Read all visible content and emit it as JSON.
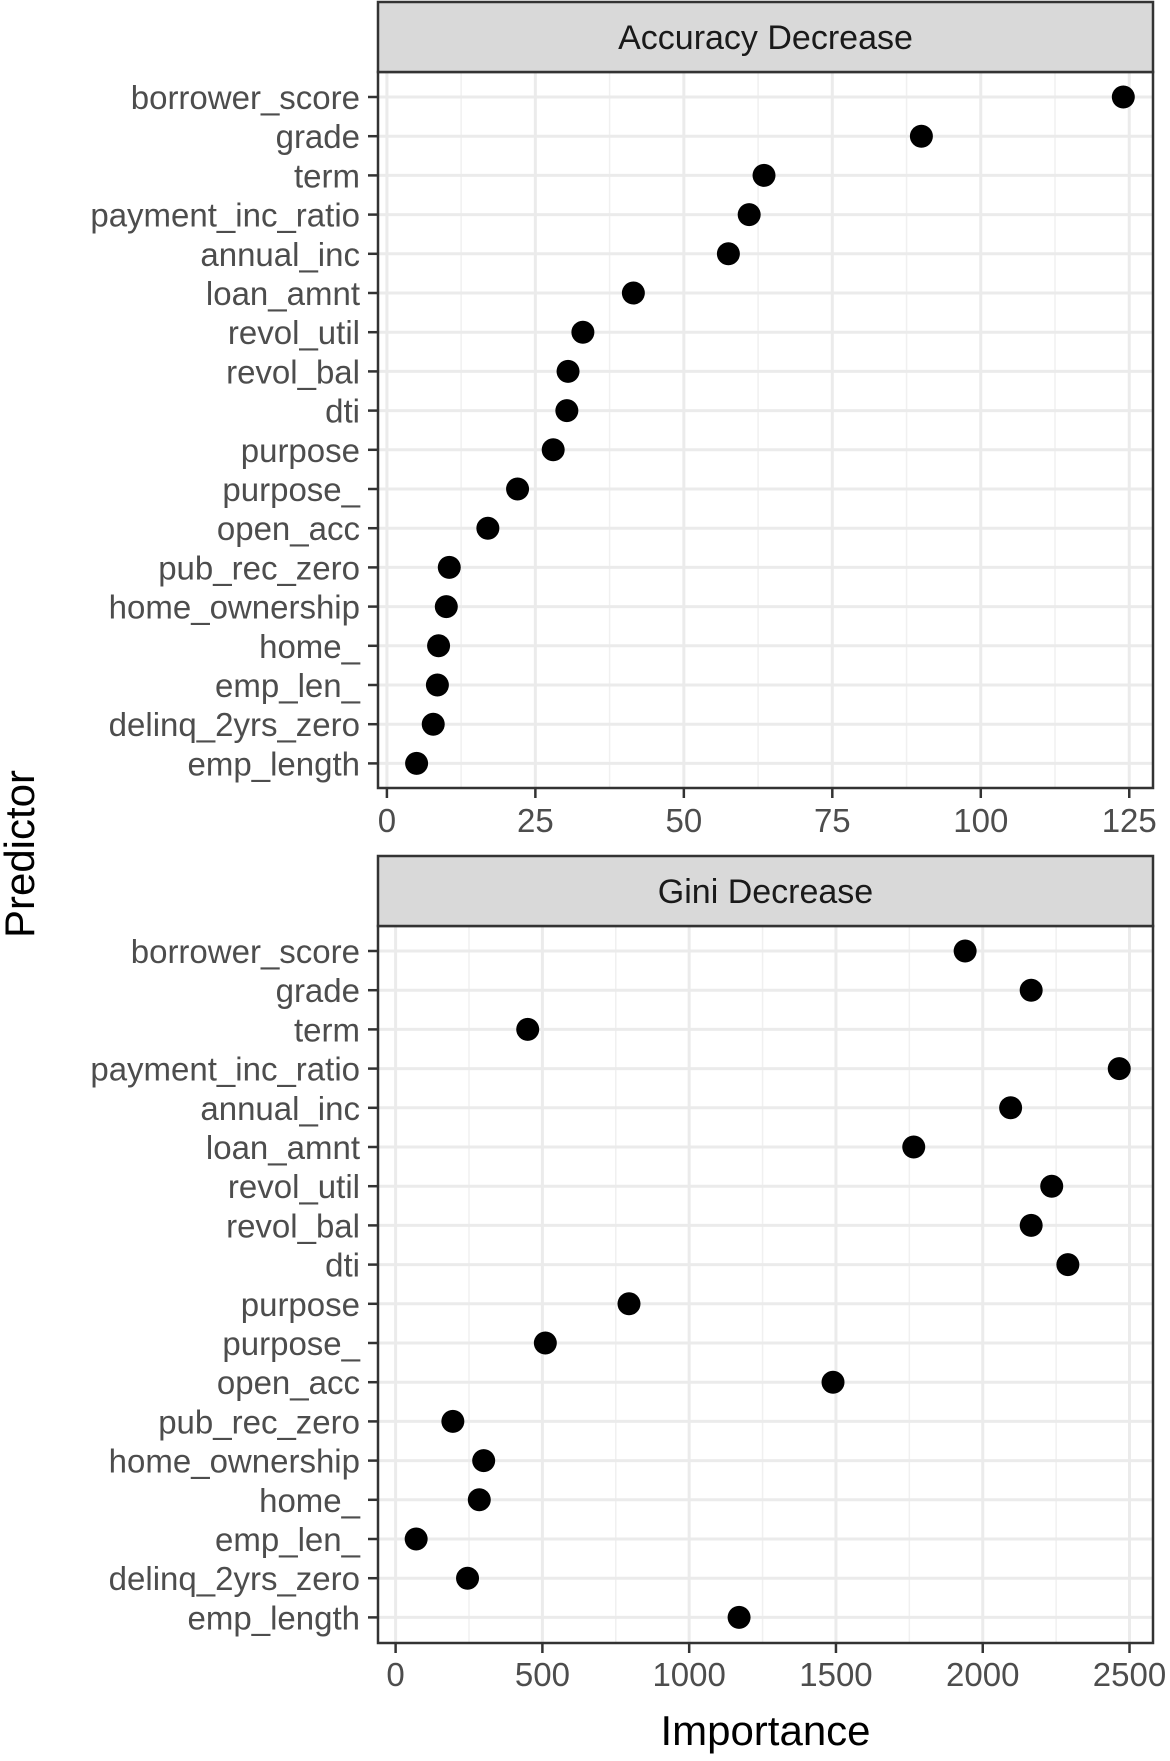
{
  "chart_data": {
    "type": "scatter",
    "xlabel": "Importance",
    "ylabel": "Predictor",
    "categories": [
      "borrower_score",
      "grade",
      "term",
      "payment_inc_ratio",
      "annual_inc",
      "loan_amnt",
      "revol_util",
      "revol_bal",
      "dti",
      "purpose",
      "purpose_",
      "open_acc",
      "pub_rec_zero",
      "home_ownership",
      "home_",
      "emp_len_",
      "delinq_2yrs_zero",
      "emp_length"
    ],
    "grid": true,
    "panels": [
      {
        "title": "Accuracy Decrease",
        "xlim": [
          -1.5,
          129
        ],
        "xticks": [
          0,
          25,
          50,
          75,
          100,
          125
        ],
        "values": [
          124,
          90,
          63.5,
          61,
          57.5,
          41.5,
          33,
          30.5,
          30.3,
          28,
          22,
          17,
          10.5,
          10,
          8.7,
          8.5,
          7.8,
          5
        ]
      },
      {
        "title": "Gini Decrease",
        "xlim": [
          -60,
          2580
        ],
        "xticks": [
          0,
          500,
          1000,
          1500,
          2000,
          2500
        ],
        "values": [
          1940,
          2165,
          450,
          2465,
          2095,
          1765,
          2235,
          2165,
          2290,
          795,
          510,
          1490,
          195,
          300,
          285,
          70,
          245,
          1170
        ]
      }
    ]
  }
}
